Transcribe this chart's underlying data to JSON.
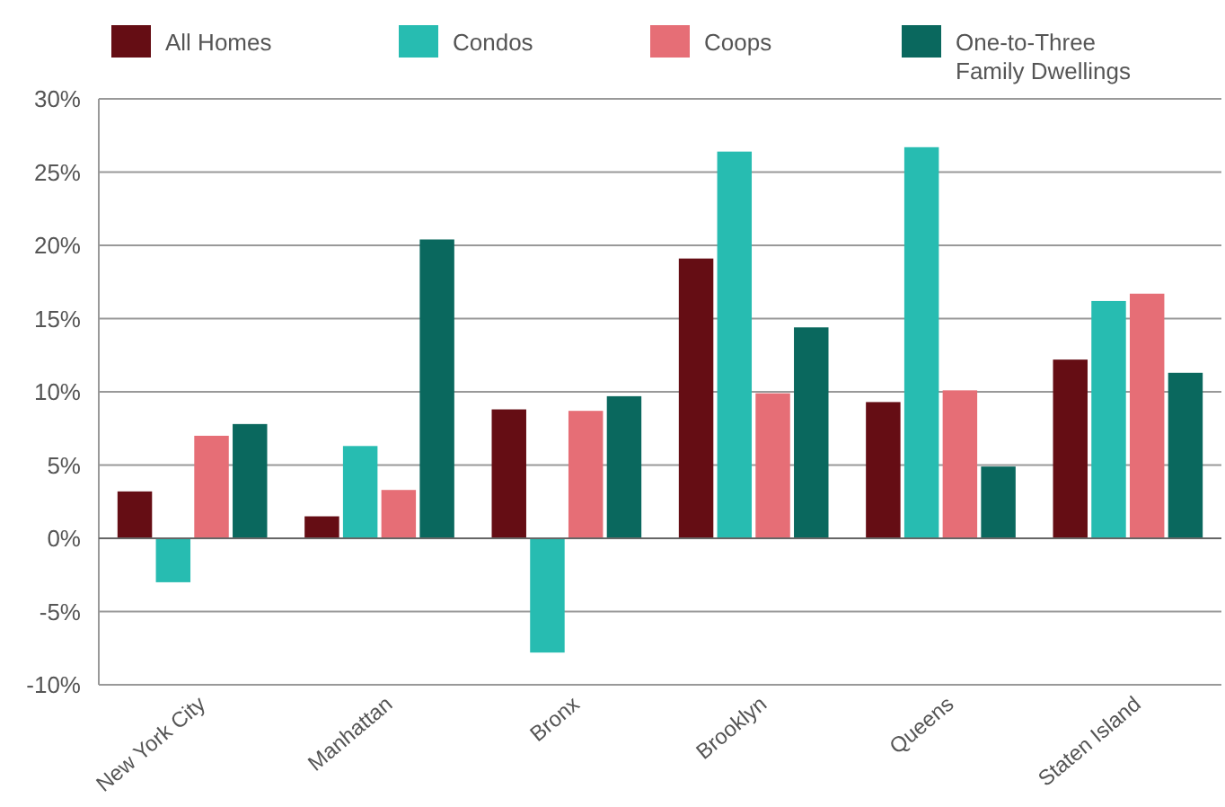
{
  "chart_data": {
    "type": "bar",
    "categories": [
      "New York City",
      "Manhattan",
      "Bronx",
      "Brooklyn",
      "Queens",
      "Staten Island"
    ],
    "series": [
      {
        "name": "All Homes",
        "color": "#650d14",
        "values": [
          3.2,
          1.5,
          8.8,
          19.1,
          9.3,
          12.2
        ]
      },
      {
        "name": "Condos",
        "color": "#27bcb1",
        "values": [
          -3.0,
          6.3,
          -7.8,
          26.4,
          26.7,
          16.2
        ]
      },
      {
        "name": "Coops",
        "color": "#e66e76",
        "values": [
          7.0,
          3.3,
          8.7,
          9.9,
          10.1,
          16.7
        ]
      },
      {
        "name": "One-to-Three Family Dwellings",
        "color": "#0a685e",
        "values": [
          7.8,
          20.4,
          9.7,
          14.4,
          4.9,
          11.3
        ]
      }
    ],
    "ylim": [
      -10,
      30
    ],
    "yticks": [
      {
        "value": -10,
        "label": "-10%"
      },
      {
        "value": -5,
        "label": "-5%"
      },
      {
        "value": 0,
        "label": "0%"
      },
      {
        "value": 5,
        "label": "5%"
      },
      {
        "value": 10,
        "label": "10%"
      },
      {
        "value": 15,
        "label": "15%"
      },
      {
        "value": 20,
        "label": "20%"
      },
      {
        "value": 25,
        "label": "25%"
      },
      {
        "value": 30,
        "label": "30%"
      }
    ],
    "grid": "y",
    "legend": "top"
  }
}
